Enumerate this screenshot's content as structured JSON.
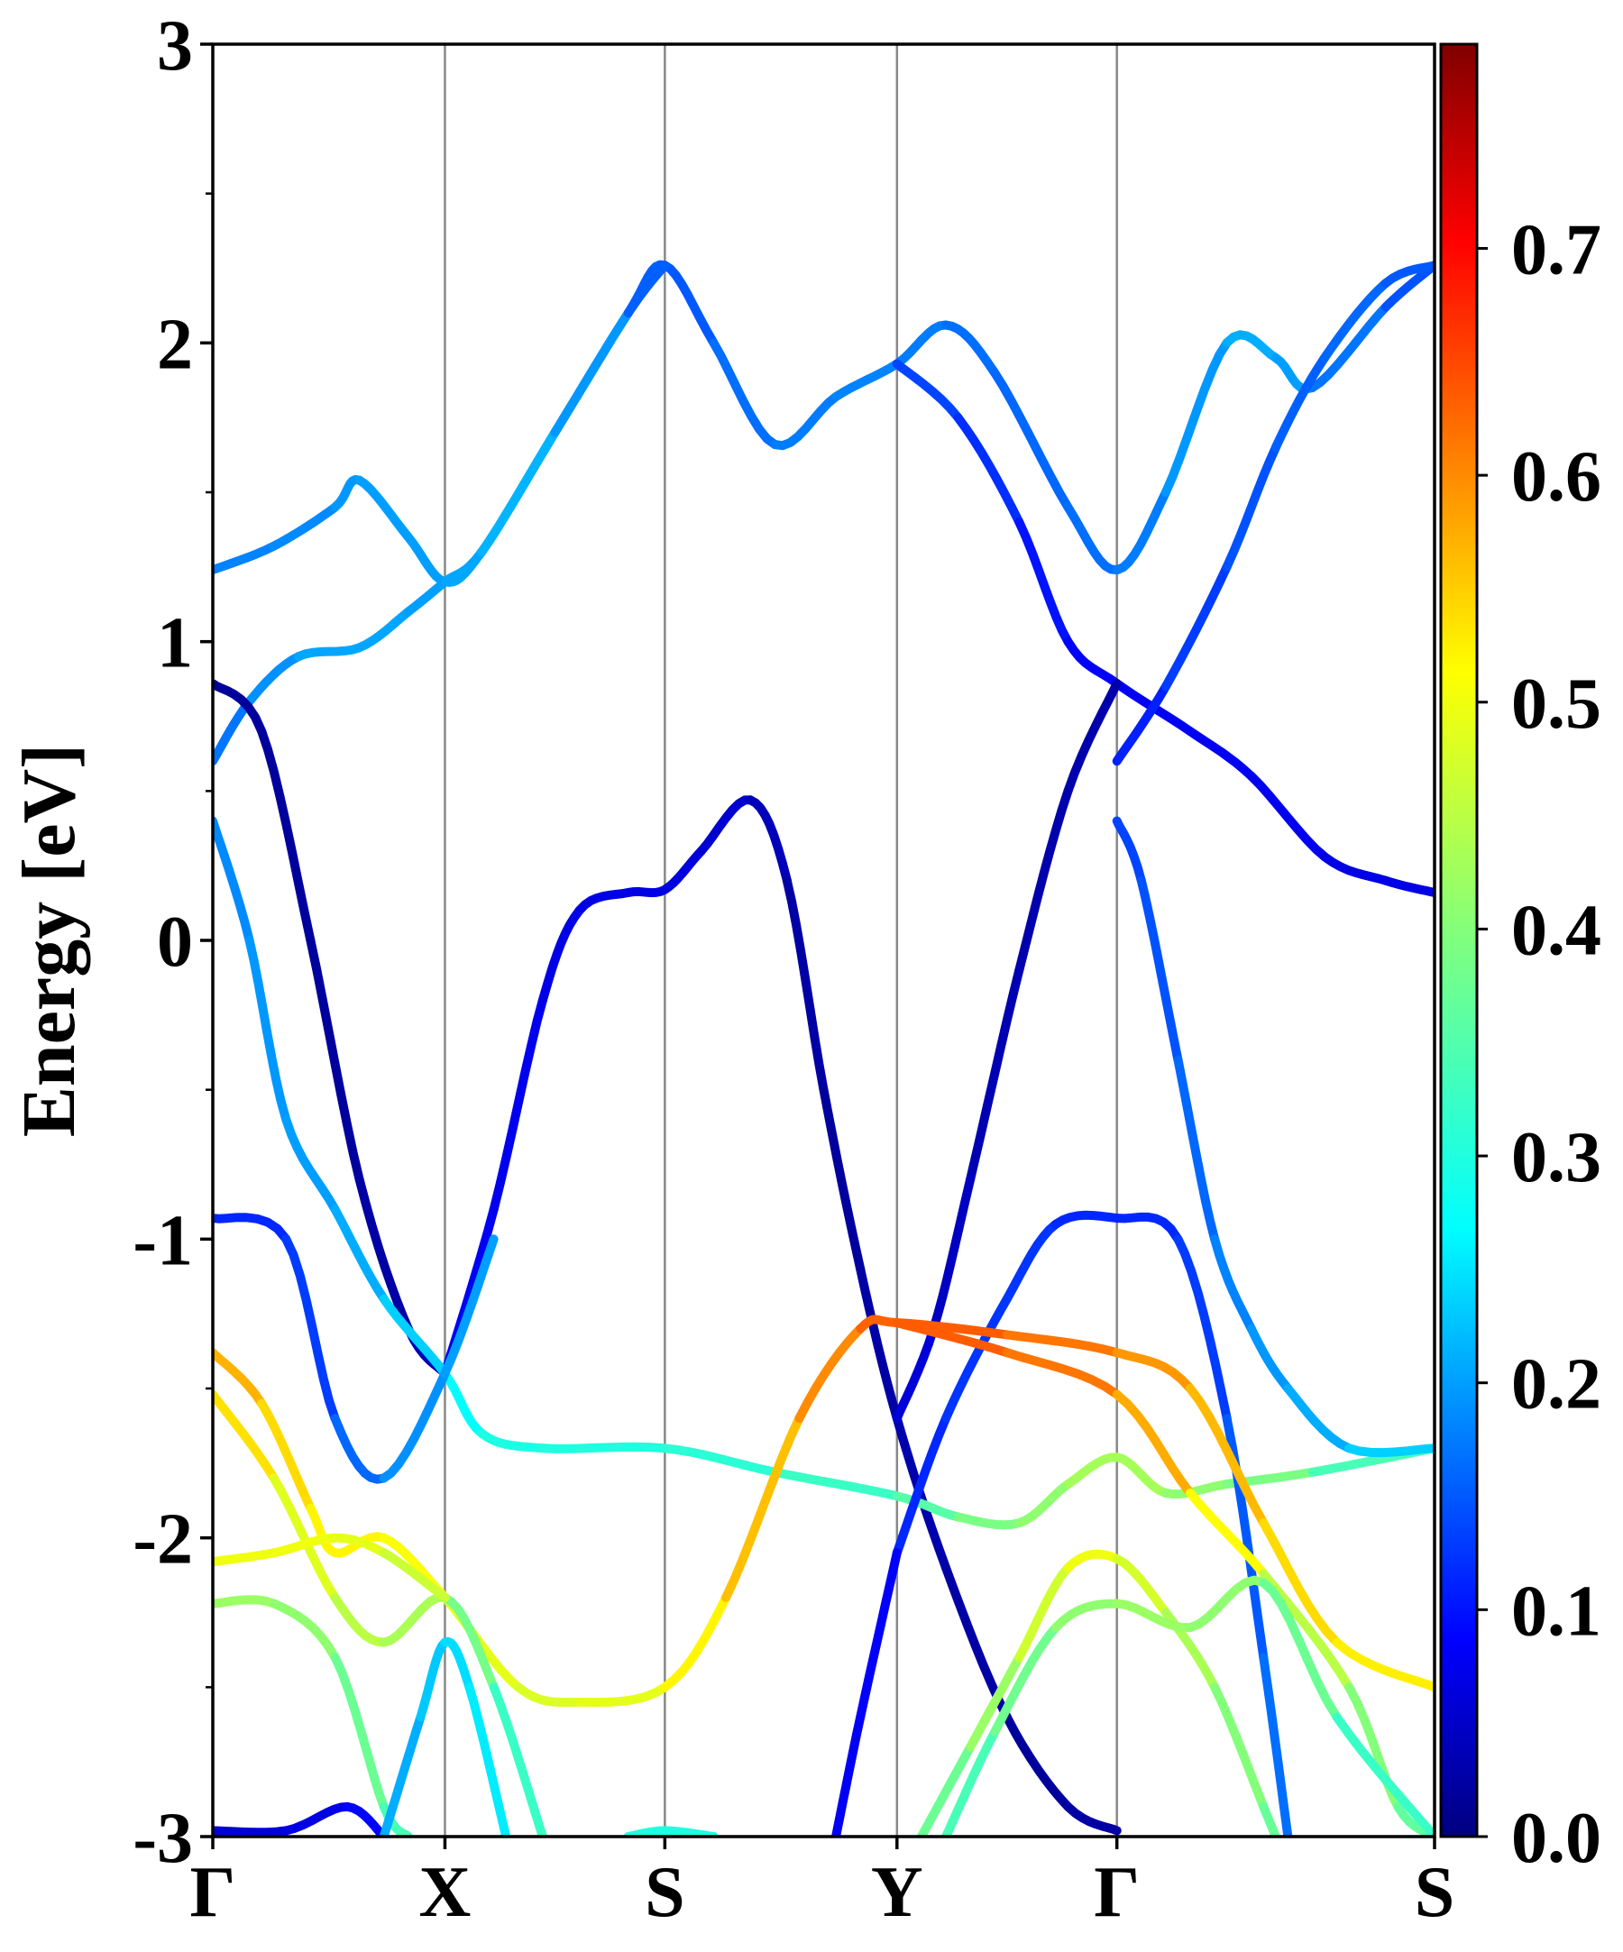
{
  "chart_data": {
    "type": "line",
    "title": "",
    "xlabel": "",
    "ylabel": "Energy [eV]",
    "ylim": [
      -3,
      3
    ],
    "yticks": [
      "-3",
      "-2",
      "-1",
      "0",
      "1",
      "2",
      "3"
    ],
    "ytick_values": [
      -3,
      -2,
      -1,
      0,
      1,
      2,
      3
    ],
    "kpath_labels": [
      "Γ",
      "X",
      "S",
      "Y",
      "Γ",
      "S"
    ],
    "kpath_positions": [
      0.0,
      0.19,
      0.37,
      0.56,
      0.74,
      1.0
    ],
    "grid": "vertical lines at high-symmetry points",
    "colorbar": {
      "colormap": "jet",
      "range": [
        0.0,
        0.79
      ],
      "ticks": [
        "0.0",
        "0.1",
        "0.2",
        "0.3",
        "0.4",
        "0.5",
        "0.6",
        "0.7"
      ],
      "tick_values": [
        0.0,
        0.1,
        0.2,
        0.3,
        0.4,
        0.5,
        0.6,
        0.7
      ]
    },
    "series": [
      {
        "points": [
          [
            0.0,
            1.24
          ],
          [
            0.05,
            1.32
          ],
          [
            0.1,
            1.45
          ],
          [
            0.12,
            1.54
          ],
          [
            0.16,
            1.35
          ],
          [
            0.19,
            1.2
          ],
          [
            0.22,
            1.3
          ],
          [
            0.28,
            1.7
          ],
          [
            0.34,
            2.1
          ],
          [
            0.37,
            2.26
          ],
          [
            0.41,
            2.0
          ],
          [
            0.46,
            1.66
          ],
          [
            0.51,
            1.82
          ],
          [
            0.56,
            1.93
          ],
          [
            0.6,
            2.06
          ],
          [
            0.64,
            1.9
          ],
          [
            0.7,
            1.45
          ],
          [
            0.74,
            1.24
          ],
          [
            0.78,
            1.5
          ],
          [
            0.83,
            2.0
          ],
          [
            0.87,
            1.95
          ],
          [
            0.9,
            1.85
          ],
          [
            0.96,
            2.12
          ],
          [
            1.0,
            2.26
          ]
        ],
        "weights": [
          0.18,
          0.18,
          0.19,
          0.2,
          0.2,
          0.2,
          0.21,
          0.22,
          0.17,
          0.14,
          0.16,
          0.17,
          0.18,
          0.18,
          0.17,
          0.16,
          0.16,
          0.17,
          0.18,
          0.21,
          0.21,
          0.19,
          0.15,
          0.14
        ]
      },
      {
        "points": [
          [
            0.0,
            0.6
          ],
          [
            0.03,
            0.8
          ],
          [
            0.07,
            0.95
          ],
          [
            0.12,
            0.98
          ],
          [
            0.16,
            1.1
          ],
          [
            0.19,
            1.2
          ],
          [
            0.22,
            1.3
          ],
          [
            0.28,
            1.7
          ],
          [
            0.34,
            2.1
          ],
          [
            0.37,
            2.26
          ]
        ],
        "weights": [
          0.16,
          0.18,
          0.2,
          0.21,
          0.2,
          0.2,
          0.21,
          0.22,
          0.17,
          0.14
        ]
      },
      {
        "points": [
          [
            0.56,
            1.93
          ],
          [
            0.61,
            1.75
          ],
          [
            0.66,
            1.4
          ],
          [
            0.7,
            1.0
          ],
          [
            0.74,
            0.86
          ],
          [
            0.8,
            0.7
          ],
          [
            0.85,
            0.55
          ],
          [
            0.91,
            0.28
          ],
          [
            0.96,
            0.2
          ],
          [
            1.0,
            0.16
          ]
        ],
        "weights": [
          0.14,
          0.13,
          0.11,
          0.09,
          0.08,
          0.08,
          0.08,
          0.07,
          0.07,
          0.07
        ]
      },
      {
        "points": [
          [
            0.74,
            0.6
          ],
          [
            0.78,
            0.85
          ],
          [
            0.83,
            1.25
          ],
          [
            0.87,
            1.65
          ],
          [
            0.91,
            1.95
          ],
          [
            0.96,
            2.2
          ],
          [
            1.0,
            2.26
          ]
        ],
        "weights": [
          0.1,
          0.12,
          0.14,
          0.15,
          0.16,
          0.16,
          0.14
        ]
      },
      {
        "points": [
          [
            0.0,
            0.86
          ],
          [
            0.04,
            0.7
          ],
          [
            0.08,
            0.0
          ],
          [
            0.12,
            -0.8
          ],
          [
            0.16,
            -1.3
          ],
          [
            0.19,
            -1.45
          ]
        ],
        "weights": [
          0.02,
          0.02,
          0.02,
          0.02,
          0.03,
          0.04
        ]
      },
      {
        "points": [
          [
            0.19,
            -1.45
          ],
          [
            0.23,
            -0.9
          ],
          [
            0.27,
            -0.2
          ],
          [
            0.3,
            0.1
          ],
          [
            0.34,
            0.16
          ],
          [
            0.37,
            0.17
          ],
          [
            0.4,
            0.3
          ],
          [
            0.44,
            0.47
          ],
          [
            0.47,
            0.2
          ],
          [
            0.5,
            -0.5
          ],
          [
            0.53,
            -1.1
          ],
          [
            0.56,
            -1.6
          ],
          [
            0.6,
            -2.1
          ],
          [
            0.65,
            -2.6
          ],
          [
            0.7,
            -2.9
          ],
          [
            0.74,
            -2.98
          ]
        ],
        "weights": [
          0.08,
          0.08,
          0.07,
          0.07,
          0.07,
          0.07,
          0.06,
          0.05,
          0.03,
          0.02,
          0.02,
          0.03,
          0.03,
          0.02,
          0.02,
          0.03
        ]
      },
      {
        "points": [
          [
            0.74,
            0.86
          ],
          [
            0.7,
            0.5
          ],
          [
            0.66,
            -0.1
          ],
          [
            0.62,
            -0.8
          ],
          [
            0.59,
            -1.3
          ],
          [
            0.56,
            -1.6
          ]
        ],
        "weights": [
          0.03,
          0.03,
          0.03,
          0.04,
          0.05,
          0.07
        ]
      },
      {
        "points": [
          [
            0.0,
            0.4
          ],
          [
            0.03,
            0.0
          ],
          [
            0.06,
            -0.6
          ],
          [
            0.1,
            -0.9
          ],
          [
            0.14,
            -1.2
          ],
          [
            0.19,
            -1.45
          ],
          [
            0.22,
            -1.65
          ],
          [
            0.27,
            -1.7
          ],
          [
            0.37,
            -1.7
          ],
          [
            0.46,
            -1.78
          ],
          [
            0.56,
            -1.86
          ],
          [
            0.61,
            -1.93
          ],
          [
            0.66,
            -1.95
          ],
          [
            0.7,
            -1.82
          ],
          [
            0.74,
            -1.73
          ],
          [
            0.78,
            -1.85
          ],
          [
            0.83,
            -1.82
          ],
          [
            0.9,
            -1.78
          ],
          [
            1.0,
            -1.7
          ]
        ],
        "weights": [
          0.18,
          0.19,
          0.2,
          0.2,
          0.22,
          0.25,
          0.29,
          0.3,
          0.3,
          0.32,
          0.33,
          0.38,
          0.4,
          0.42,
          0.44,
          0.42,
          0.4,
          0.38,
          0.3
        ]
      },
      {
        "points": [
          [
            0.74,
            0.4
          ],
          [
            0.76,
            0.2
          ],
          [
            0.79,
            -0.4
          ],
          [
            0.82,
            -1.0
          ],
          [
            0.85,
            -1.3
          ],
          [
            0.88,
            -1.5
          ],
          [
            0.93,
            -1.7
          ],
          [
            1.0,
            -1.7
          ]
        ],
        "weights": [
          0.13,
          0.14,
          0.15,
          0.17,
          0.19,
          0.2,
          0.22,
          0.25
        ]
      },
      {
        "points": [
          [
            0.0,
            -0.93
          ],
          [
            0.06,
            -1.0
          ],
          [
            0.1,
            -1.6
          ],
          [
            0.14,
            -1.8
          ],
          [
            0.19,
            -1.45
          ],
          [
            0.23,
            -1.0
          ]
        ],
        "weights": [
          0.11,
          0.12,
          0.14,
          0.18,
          0.2,
          0.2
        ]
      },
      {
        "points": [
          [
            0.56,
            -2.05
          ],
          [
            0.6,
            -1.6
          ],
          [
            0.65,
            -1.2
          ],
          [
            0.69,
            -0.95
          ],
          [
            0.74,
            -0.93
          ],
          [
            0.79,
            -1.0
          ],
          [
            0.83,
            -1.6
          ],
          [
            0.86,
            -2.4
          ],
          [
            0.88,
            -3.0
          ]
        ],
        "weights": [
          0.11,
          0.12,
          0.13,
          0.12,
          0.11,
          0.12,
          0.14,
          0.16,
          0.17
        ]
      },
      {
        "points": [
          [
            0.0,
            -1.38
          ],
          [
            0.04,
            -1.55
          ],
          [
            0.08,
            -1.9
          ],
          [
            0.1,
            -2.05
          ],
          [
            0.14,
            -2.0
          ],
          [
            0.19,
            -2.2
          ],
          [
            0.25,
            -2.5
          ],
          [
            0.3,
            -2.55
          ],
          [
            0.37,
            -2.5
          ],
          [
            0.42,
            -2.2
          ],
          [
            0.48,
            -1.6
          ],
          [
            0.53,
            -1.3
          ],
          [
            0.56,
            -1.28
          ],
          [
            0.65,
            -1.32
          ],
          [
            0.74,
            -1.38
          ],
          [
            0.8,
            -1.5
          ],
          [
            0.86,
            -1.95
          ],
          [
            0.92,
            -2.35
          ],
          [
            1.0,
            -2.5
          ]
        ],
        "weights": [
          0.58,
          0.56,
          0.52,
          0.52,
          0.52,
          0.5,
          0.48,
          0.48,
          0.5,
          0.54,
          0.58,
          0.62,
          0.64,
          0.63,
          0.6,
          0.58,
          0.55,
          0.53,
          0.52
        ]
      },
      {
        "points": [
          [
            0.0,
            -1.52
          ],
          [
            0.05,
            -1.8
          ],
          [
            0.1,
            -2.2
          ],
          [
            0.14,
            -2.35
          ],
          [
            0.19,
            -2.2
          ],
          [
            0.23,
            -2.5
          ],
          [
            0.27,
            -3.0
          ]
        ],
        "weights": [
          0.55,
          0.52,
          0.45,
          0.45,
          0.42,
          0.35,
          0.3
        ]
      },
      {
        "points": [
          [
            0.0,
            -2.08
          ],
          [
            0.05,
            -2.05
          ],
          [
            0.1,
            -2.0
          ],
          [
            0.14,
            -2.05
          ],
          [
            0.19,
            -2.2
          ]
        ],
        "weights": [
          0.5,
          0.5,
          0.5,
          0.48,
          0.45
        ]
      },
      {
        "points": [
          [
            0.56,
            -1.28
          ],
          [
            0.65,
            -1.38
          ],
          [
            0.74,
            -1.52
          ],
          [
            0.8,
            -1.85
          ],
          [
            0.86,
            -2.12
          ],
          [
            0.93,
            -2.5
          ],
          [
            0.97,
            -2.9
          ],
          [
            1.0,
            -3.0
          ]
        ],
        "weights": [
          0.64,
          0.63,
          0.6,
          0.55,
          0.48,
          0.42,
          0.38,
          0.35
        ]
      },
      {
        "points": [
          [
            0.0,
            -2.22
          ],
          [
            0.05,
            -2.22
          ],
          [
            0.1,
            -2.4
          ],
          [
            0.14,
            -2.9
          ],
          [
            0.16,
            -3.0
          ]
        ],
        "weights": [
          0.42,
          0.42,
          0.4,
          0.35,
          0.33
        ]
      },
      {
        "points": [
          [
            0.58,
            -3.0
          ],
          [
            0.62,
            -2.7
          ],
          [
            0.66,
            -2.4
          ],
          [
            0.7,
            -2.1
          ],
          [
            0.74,
            -2.07
          ],
          [
            0.78,
            -2.25
          ],
          [
            0.82,
            -2.5
          ],
          [
            0.86,
            -2.9
          ],
          [
            0.87,
            -3.0
          ]
        ],
        "weights": [
          0.35,
          0.4,
          0.44,
          0.5,
          0.5,
          0.45,
          0.42,
          0.38,
          0.36
        ]
      },
      {
        "points": [
          [
            0.6,
            -3.0
          ],
          [
            0.64,
            -2.65
          ],
          [
            0.69,
            -2.3
          ],
          [
            0.74,
            -2.22
          ],
          [
            0.8,
            -2.3
          ],
          [
            0.86,
            -2.15
          ],
          [
            0.92,
            -2.6
          ],
          [
            1.0,
            -3.0
          ]
        ],
        "weights": [
          0.32,
          0.36,
          0.4,
          0.42,
          0.42,
          0.4,
          0.35,
          0.3
        ]
      },
      {
        "points": [
          [
            0.0,
            -2.98
          ],
          [
            0.06,
            -2.98
          ],
          [
            0.11,
            -2.9
          ],
          [
            0.14,
            -3.0
          ]
        ],
        "weights": [
          0.06,
          0.06,
          0.08,
          0.1
        ]
      },
      {
        "points": [
          [
            0.14,
            -3.0
          ],
          [
            0.17,
            -2.6
          ],
          [
            0.19,
            -2.35
          ],
          [
            0.21,
            -2.5
          ],
          [
            0.24,
            -3.0
          ]
        ],
        "weights": [
          0.2,
          0.22,
          0.24,
          0.25,
          0.26
        ]
      },
      {
        "points": [
          [
            0.51,
            -3.0
          ],
          [
            0.53,
            -2.6
          ],
          [
            0.56,
            -2.05
          ]
        ],
        "weights": [
          0.08,
          0.08,
          0.09
        ]
      },
      {
        "points": [
          [
            0.34,
            -3.0
          ],
          [
            0.37,
            -2.98
          ],
          [
            0.41,
            -3.0
          ]
        ],
        "weights": [
          0.3,
          0.3,
          0.3
        ]
      }
    ]
  }
}
